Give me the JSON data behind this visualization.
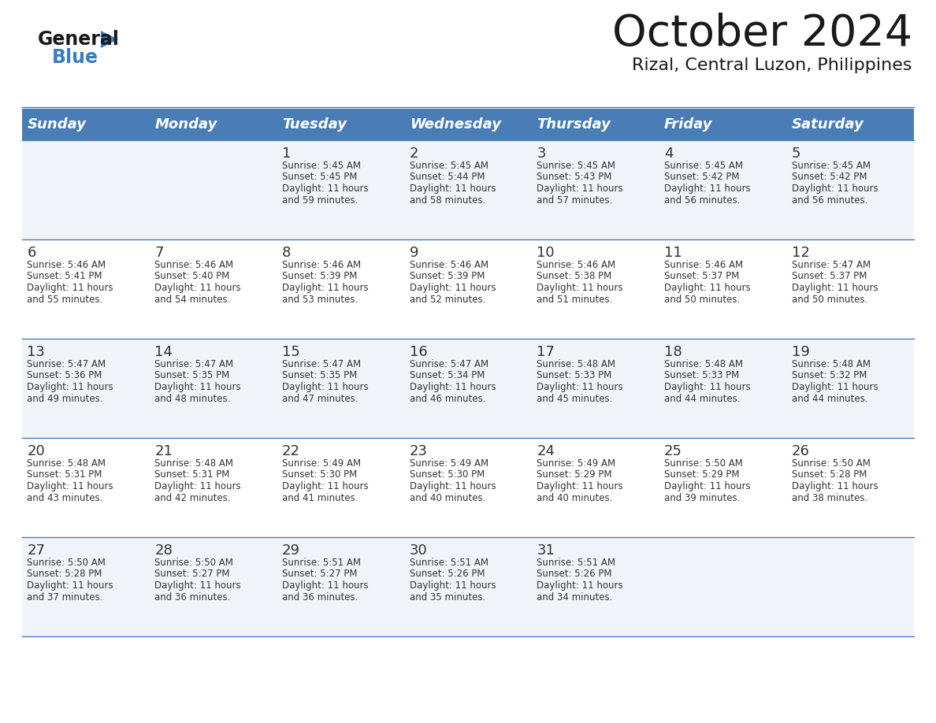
{
  "title": "October 2024",
  "subtitle": "Rizal, Central Luzon, Philippines",
  "days_of_week": [
    "Sunday",
    "Monday",
    "Tuesday",
    "Wednesday",
    "Thursday",
    "Friday",
    "Saturday"
  ],
  "header_bg": "#4A7DB5",
  "header_text": "#FFFFFF",
  "cell_bg_odd": "#F0F4F8",
  "cell_bg_even": "#FFFFFF",
  "cell_text": "#333333",
  "line_color": "#4A7DB5",
  "title_color": "#1a1a1a",
  "subtitle_color": "#1a1a1a",
  "logo_color1": "#1a1a1a",
  "logo_color2": "#3a7fc1",
  "logo_triangle_color": "#3a7fc1",
  "calendar_data": [
    [
      {
        "day": "",
        "sunrise": "",
        "sunset": "",
        "daylight": ""
      },
      {
        "day": "",
        "sunrise": "",
        "sunset": "",
        "daylight": ""
      },
      {
        "day": "1",
        "sunrise": "5:45 AM",
        "sunset": "5:45 PM",
        "daylight": "11 hours and 59 minutes."
      },
      {
        "day": "2",
        "sunrise": "5:45 AM",
        "sunset": "5:44 PM",
        "daylight": "11 hours and 58 minutes."
      },
      {
        "day": "3",
        "sunrise": "5:45 AM",
        "sunset": "5:43 PM",
        "daylight": "11 hours and 57 minutes."
      },
      {
        "day": "4",
        "sunrise": "5:45 AM",
        "sunset": "5:42 PM",
        "daylight": "11 hours and 56 minutes."
      },
      {
        "day": "5",
        "sunrise": "5:45 AM",
        "sunset": "5:42 PM",
        "daylight": "11 hours and 56 minutes."
      }
    ],
    [
      {
        "day": "6",
        "sunrise": "5:46 AM",
        "sunset": "5:41 PM",
        "daylight": "11 hours and 55 minutes."
      },
      {
        "day": "7",
        "sunrise": "5:46 AM",
        "sunset": "5:40 PM",
        "daylight": "11 hours and 54 minutes."
      },
      {
        "day": "8",
        "sunrise": "5:46 AM",
        "sunset": "5:39 PM",
        "daylight": "11 hours and 53 minutes."
      },
      {
        "day": "9",
        "sunrise": "5:46 AM",
        "sunset": "5:39 PM",
        "daylight": "11 hours and 52 minutes."
      },
      {
        "day": "10",
        "sunrise": "5:46 AM",
        "sunset": "5:38 PM",
        "daylight": "11 hours and 51 minutes."
      },
      {
        "day": "11",
        "sunrise": "5:46 AM",
        "sunset": "5:37 PM",
        "daylight": "11 hours and 50 minutes."
      },
      {
        "day": "12",
        "sunrise": "5:47 AM",
        "sunset": "5:37 PM",
        "daylight": "11 hours and 50 minutes."
      }
    ],
    [
      {
        "day": "13",
        "sunrise": "5:47 AM",
        "sunset": "5:36 PM",
        "daylight": "11 hours and 49 minutes."
      },
      {
        "day": "14",
        "sunrise": "5:47 AM",
        "sunset": "5:35 PM",
        "daylight": "11 hours and 48 minutes."
      },
      {
        "day": "15",
        "sunrise": "5:47 AM",
        "sunset": "5:35 PM",
        "daylight": "11 hours and 47 minutes."
      },
      {
        "day": "16",
        "sunrise": "5:47 AM",
        "sunset": "5:34 PM",
        "daylight": "11 hours and 46 minutes."
      },
      {
        "day": "17",
        "sunrise": "5:48 AM",
        "sunset": "5:33 PM",
        "daylight": "11 hours and 45 minutes."
      },
      {
        "day": "18",
        "sunrise": "5:48 AM",
        "sunset": "5:33 PM",
        "daylight": "11 hours and 44 minutes."
      },
      {
        "day": "19",
        "sunrise": "5:48 AM",
        "sunset": "5:32 PM",
        "daylight": "11 hours and 44 minutes."
      }
    ],
    [
      {
        "day": "20",
        "sunrise": "5:48 AM",
        "sunset": "5:31 PM",
        "daylight": "11 hours and 43 minutes."
      },
      {
        "day": "21",
        "sunrise": "5:48 AM",
        "sunset": "5:31 PM",
        "daylight": "11 hours and 42 minutes."
      },
      {
        "day": "22",
        "sunrise": "5:49 AM",
        "sunset": "5:30 PM",
        "daylight": "11 hours and 41 minutes."
      },
      {
        "day": "23",
        "sunrise": "5:49 AM",
        "sunset": "5:30 PM",
        "daylight": "11 hours and 40 minutes."
      },
      {
        "day": "24",
        "sunrise": "5:49 AM",
        "sunset": "5:29 PM",
        "daylight": "11 hours and 40 minutes."
      },
      {
        "day": "25",
        "sunrise": "5:50 AM",
        "sunset": "5:29 PM",
        "daylight": "11 hours and 39 minutes."
      },
      {
        "day": "26",
        "sunrise": "5:50 AM",
        "sunset": "5:28 PM",
        "daylight": "11 hours and 38 minutes."
      }
    ],
    [
      {
        "day": "27",
        "sunrise": "5:50 AM",
        "sunset": "5:28 PM",
        "daylight": "11 hours and 37 minutes."
      },
      {
        "day": "28",
        "sunrise": "5:50 AM",
        "sunset": "5:27 PM",
        "daylight": "11 hours and 36 minutes."
      },
      {
        "day": "29",
        "sunrise": "5:51 AM",
        "sunset": "5:27 PM",
        "daylight": "11 hours and 36 minutes."
      },
      {
        "day": "30",
        "sunrise": "5:51 AM",
        "sunset": "5:26 PM",
        "daylight": "11 hours and 35 minutes."
      },
      {
        "day": "31",
        "sunrise": "5:51 AM",
        "sunset": "5:26 PM",
        "daylight": "11 hours and 34 minutes."
      },
      {
        "day": "",
        "sunrise": "",
        "sunset": "",
        "daylight": ""
      },
      {
        "day": "",
        "sunrise": "",
        "sunset": "",
        "daylight": ""
      }
    ]
  ]
}
